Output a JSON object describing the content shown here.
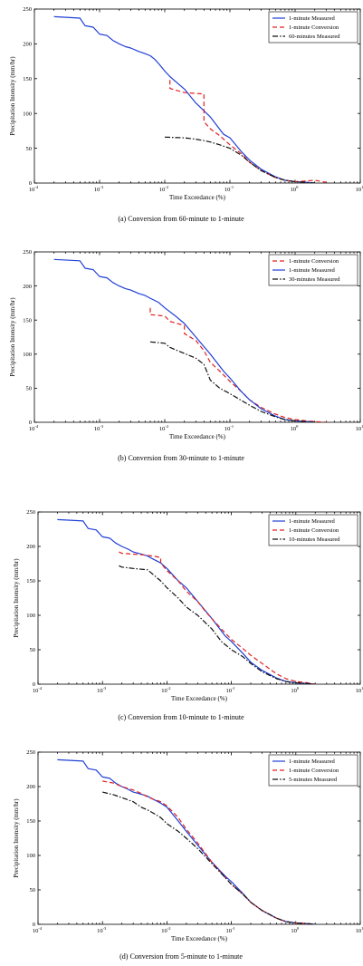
{
  "chart_data": [
    {
      "type": "line",
      "xlabel": "Time Exceedance (%)",
      "ylabel": "Precipitation Intensity (mm/hr)",
      "caption": "(a) Conversion from 60-minute to 1-minute",
      "xscale": "log",
      "xlim": [
        0.0001,
        10
      ],
      "ylim": [
        0,
        250
      ],
      "xtick_exponents": [
        "-4",
        "-3",
        "-2",
        "-1",
        "0",
        "1"
      ],
      "yticks": [
        0,
        50,
        100,
        150,
        200,
        250
      ],
      "legend": "top-right",
      "series": [
        {
          "name": "1-minute Measured",
          "color": "#1f3fd6",
          "dash": "solid",
          "x": [
            0.0002,
            0.0005,
            0.0006,
            0.0008,
            0.001,
            0.0013,
            0.0016,
            0.002,
            0.0025,
            0.003,
            0.004,
            0.005,
            0.006,
            0.007,
            0.008,
            0.01,
            0.012,
            0.015,
            0.02,
            0.03,
            0.05,
            0.08,
            0.1,
            0.15,
            0.2,
            0.3,
            0.5,
            0.7,
            1.0,
            1.5,
            2.0
          ],
          "y": [
            239,
            237,
            226,
            224,
            214,
            212,
            205,
            200,
            196,
            194,
            189,
            186,
            183,
            178,
            172,
            161,
            153,
            145,
            135,
            115,
            95,
            70,
            65,
            45,
            33,
            20,
            9,
            4,
            2,
            1,
            0
          ]
        },
        {
          "name": "1-minute Conversion",
          "color": "#e02020",
          "dash": "dashed",
          "x": [
            0.012,
            0.012,
            0.02,
            0.04,
            0.04,
            0.05,
            0.07,
            0.1,
            0.15,
            0.2,
            0.3,
            0.5,
            0.7,
            1.0,
            1.5,
            2.0,
            3.0
          ],
          "y": [
            148,
            136,
            130,
            128,
            88,
            78,
            68,
            55,
            42,
            30,
            18,
            8,
            4,
            2,
            3,
            4,
            1
          ]
        },
        {
          "name": "60-minutes Measured",
          "color": "#111111",
          "dash": "dashdot",
          "x": [
            0.01,
            0.02,
            0.03,
            0.04,
            0.05,
            0.07,
            0.1,
            0.15,
            0.2,
            0.3,
            0.5,
            0.7,
            1.0,
            1.5,
            2.0
          ],
          "y": [
            66,
            65,
            63,
            61,
            59,
            55,
            50,
            40,
            30,
            18,
            8,
            4,
            2,
            1,
            0
          ]
        }
      ]
    },
    {
      "type": "line",
      "xlabel": "Time Exceedance (%)",
      "ylabel": "Precipitation Intensity (mm/hr)",
      "caption": "(b) Conversion from 30-minute to 1-minute",
      "xscale": "log",
      "xlim": [
        0.0001,
        10
      ],
      "ylim": [
        0,
        250
      ],
      "xtick_exponents": [
        "-4",
        "-3",
        "-2",
        "-1",
        "0",
        "1"
      ],
      "yticks": [
        0,
        50,
        100,
        150,
        200,
        250
      ],
      "legend": "top-right",
      "series": [
        {
          "name": "1-minute Conversion",
          "color": "#e02020",
          "dash": "dashed",
          "x": [
            0.006,
            0.006,
            0.01,
            0.012,
            0.02,
            0.02,
            0.03,
            0.04,
            0.05,
            0.07,
            0.1,
            0.15,
            0.2,
            0.3,
            0.5,
            0.7,
            1.0,
            1.5,
            2.0,
            3.0
          ],
          "y": [
            168,
            158,
            156,
            148,
            142,
            130,
            120,
            105,
            88,
            75,
            60,
            45,
            33,
            22,
            12,
            7,
            4,
            2,
            1,
            0
          ]
        },
        {
          "name": "1-minute Measured",
          "color": "#1f3fd6",
          "dash": "solid",
          "x": [
            0.0002,
            0.0005,
            0.0006,
            0.0008,
            0.001,
            0.0013,
            0.0016,
            0.002,
            0.0025,
            0.003,
            0.004,
            0.005,
            0.006,
            0.008,
            0.01,
            0.015,
            0.02,
            0.03,
            0.05,
            0.08,
            0.1,
            0.15,
            0.2,
            0.3,
            0.5,
            0.7,
            1.0,
            1.5,
            2.0
          ],
          "y": [
            239,
            237,
            226,
            224,
            214,
            212,
            205,
            200,
            196,
            194,
            189,
            186,
            182,
            176,
            168,
            155,
            145,
            125,
            100,
            75,
            65,
            45,
            33,
            20,
            9,
            4,
            2,
            1,
            0
          ]
        },
        {
          "name": "30-minutes Measured",
          "color": "#111111",
          "dash": "dashdot",
          "x": [
            0.006,
            0.01,
            0.012,
            0.015,
            0.02,
            0.03,
            0.04,
            0.05,
            0.07,
            0.1,
            0.15,
            0.2,
            0.3,
            0.5,
            0.7,
            1.0,
            1.5,
            2.0
          ],
          "y": [
            118,
            116,
            110,
            106,
            101,
            94,
            85,
            62,
            50,
            42,
            32,
            25,
            16,
            8,
            4,
            2,
            1,
            0
          ]
        }
      ]
    },
    {
      "type": "line",
      "xlabel": "Time Exceedance (%)",
      "ylabel": "Precipitation Intensity (mm/hr)",
      "caption": "(c) Conversion from 10-minute to 1-minute",
      "xscale": "log",
      "xlim": [
        0.0001,
        10
      ],
      "ylim": [
        0,
        250
      ],
      "xtick_exponents": [
        "-4",
        "-3",
        "-2",
        "-1",
        "0",
        "1"
      ],
      "yticks": [
        0,
        50,
        100,
        150,
        200,
        250
      ],
      "legend": "top-right",
      "series": [
        {
          "name": "1-minute Measured",
          "color": "#1f3fd6",
          "dash": "solid",
          "x": [
            0.0002,
            0.0005,
            0.0006,
            0.0008,
            0.001,
            0.0013,
            0.0016,
            0.002,
            0.0025,
            0.003,
            0.004,
            0.005,
            0.006,
            0.008,
            0.01,
            0.015,
            0.02,
            0.03,
            0.05,
            0.08,
            0.1,
            0.15,
            0.2,
            0.3,
            0.5,
            0.7,
            1.0,
            1.5,
            2.0
          ],
          "y": [
            239,
            237,
            226,
            224,
            214,
            212,
            205,
            200,
            196,
            192,
            189,
            186,
            182,
            176,
            168,
            150,
            140,
            120,
            95,
            70,
            62,
            45,
            32,
            20,
            9,
            4,
            2,
            1,
            0
          ]
        },
        {
          "name": "1-minute Conversion",
          "color": "#e02020",
          "dash": "dashed",
          "x": [
            0.0018,
            0.002,
            0.004,
            0.006,
            0.008,
            0.008,
            0.01,
            0.015,
            0.02,
            0.03,
            0.04,
            0.05,
            0.07,
            0.1,
            0.15,
            0.2,
            0.3,
            0.5,
            0.7,
            1.0,
            1.5,
            2.0
          ],
          "y": [
            192,
            190,
            188,
            186,
            184,
            176,
            165,
            150,
            135,
            120,
            105,
            95,
            80,
            65,
            52,
            42,
            30,
            15,
            8,
            4,
            2,
            0
          ]
        },
        {
          "name": "10-minutes Measured",
          "color": "#111111",
          "dash": "dashdot",
          "x": [
            0.0018,
            0.002,
            0.003,
            0.005,
            0.008,
            0.01,
            0.015,
            0.02,
            0.03,
            0.05,
            0.07,
            0.1,
            0.15,
            0.2,
            0.3,
            0.5,
            0.7,
            1.0,
            1.5,
            2.0
          ],
          "y": [
            172,
            170,
            168,
            166,
            150,
            140,
            125,
            112,
            100,
            80,
            62,
            50,
            40,
            30,
            18,
            8,
            4,
            2,
            1,
            0
          ]
        }
      ]
    },
    {
      "type": "line",
      "xlabel": "Time Exceedance (%)",
      "ylabel": "Precipitation Intensity (mm/hr)",
      "caption": "(d) Conversion from 5-minute to 1-minute",
      "xscale": "log",
      "xlim": [
        0.0001,
        10
      ],
      "ylim": [
        0,
        250
      ],
      "xtick_exponents": [
        "-4",
        "-3",
        "-2",
        "-1",
        "0",
        "1"
      ],
      "yticks": [
        0,
        50,
        100,
        150,
        200,
        250
      ],
      "legend": "top-right",
      "series": [
        {
          "name": "1-minute Measured",
          "color": "#1f3fd6",
          "dash": "solid",
          "x": [
            0.0002,
            0.0005,
            0.0006,
            0.0008,
            0.001,
            0.0013,
            0.0016,
            0.002,
            0.0025,
            0.003,
            0.004,
            0.005,
            0.006,
            0.008,
            0.01,
            0.015,
            0.02,
            0.03,
            0.05,
            0.08,
            0.1,
            0.15,
            0.2,
            0.3,
            0.5,
            0.7,
            1.0,
            1.5,
            2.0
          ],
          "y": [
            239,
            237,
            226,
            224,
            214,
            212,
            205,
            200,
            196,
            192,
            189,
            186,
            182,
            176,
            170,
            150,
            135,
            115,
            90,
            70,
            62,
            45,
            32,
            20,
            9,
            4,
            2,
            1,
            0
          ]
        },
        {
          "name": "1-minute Conversion",
          "color": "#e02020",
          "dash": "dashed",
          "x": [
            0.001,
            0.0015,
            0.002,
            0.003,
            0.004,
            0.005,
            0.006,
            0.008,
            0.01,
            0.015,
            0.02,
            0.03,
            0.05,
            0.08,
            0.1,
            0.15,
            0.2,
            0.3,
            0.5,
            0.7,
            1.0,
            1.5,
            2.0
          ],
          "y": [
            208,
            205,
            200,
            195,
            190,
            185,
            182,
            178,
            172,
            155,
            138,
            118,
            90,
            68,
            58,
            44,
            32,
            20,
            9,
            4,
            2,
            1,
            0
          ]
        },
        {
          "name": "5-minutes Measured",
          "color": "#111111",
          "dash": "dashdot",
          "x": [
            0.001,
            0.0015,
            0.002,
            0.003,
            0.004,
            0.005,
            0.006,
            0.008,
            0.01,
            0.015,
            0.02,
            0.03,
            0.05,
            0.08,
            0.1,
            0.15,
            0.2,
            0.3,
            0.5,
            0.7,
            1.0,
            1.5,
            2.0
          ],
          "y": [
            192,
            188,
            184,
            178,
            170,
            166,
            162,
            155,
            146,
            135,
            125,
            110,
            88,
            68,
            58,
            44,
            32,
            20,
            9,
            4,
            2,
            1,
            0
          ]
        }
      ]
    }
  ]
}
